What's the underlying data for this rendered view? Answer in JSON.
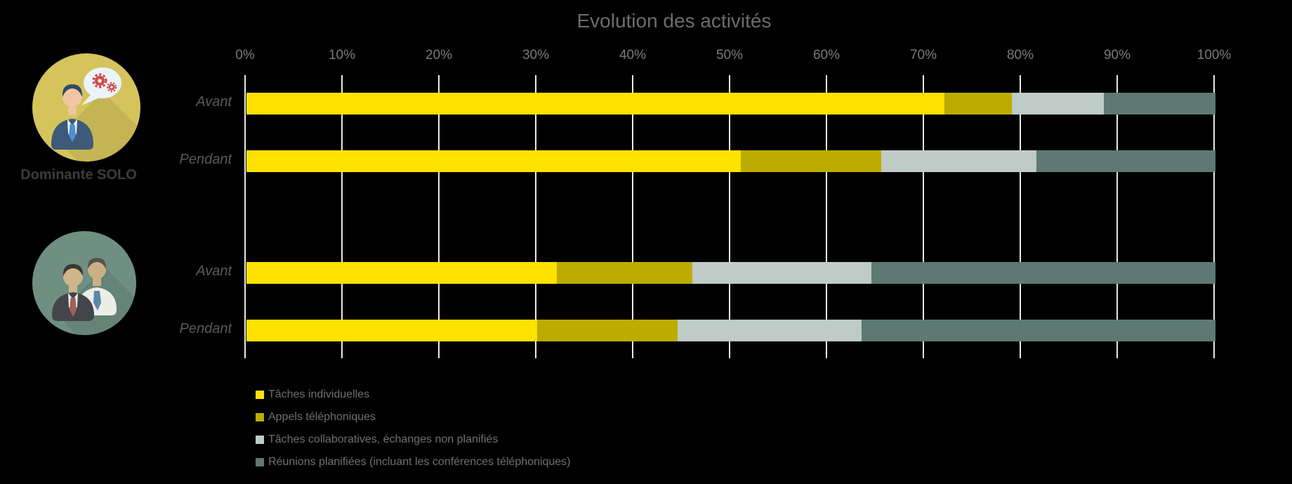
{
  "chart_data": {
    "type": "bar",
    "orientation": "horizontal",
    "stacked": true,
    "title": "Evolution des activités",
    "categories": [
      "Avant",
      "Pendant",
      "Avant",
      "Pendant"
    ],
    "series": [
      {
        "name": "Tâches individuelles",
        "color": "#FFE200",
        "values": [
          72,
          51,
          32,
          30
        ]
      },
      {
        "name": "Appels téléphoniques",
        "color": "#BCAC00",
        "values": [
          7,
          14.5,
          14,
          14.5
        ]
      },
      {
        "name": "Tâches collaboratives, échanges non planifiés",
        "color": "#BECBC6",
        "values": [
          9.5,
          16,
          18.5,
          19
        ]
      },
      {
        "name": "Réunions planifiées (incluant les conférences téléphoniques)",
        "color": "#5E7972",
        "values": [
          11.5,
          18.5,
          35.5,
          36.5
        ]
      }
    ],
    "xlim": [
      0,
      100
    ],
    "x_ticks": [
      "0%",
      "10%",
      "20%",
      "30%",
      "40%",
      "50%",
      "60%",
      "70%",
      "80%",
      "90%",
      "100%"
    ],
    "grid": true,
    "legend_position": "bottom-left"
  },
  "groups": [
    {
      "label": "Dominante SOLO",
      "icon": "solo-businessman-speech-bubble-gears-icon",
      "rows": [
        {
          "label": "Avant"
        },
        {
          "label": "Pendant"
        }
      ]
    },
    {
      "label": "",
      "icon": "duo-businessmen-icon",
      "rows": [
        {
          "label": "Avant"
        },
        {
          "label": "Pendant"
        }
      ]
    }
  ],
  "colors": {
    "background": "#000000",
    "gridline": "#E9E9E9",
    "title_text": "#6C6C6C",
    "tick_text": "#7A7A7A",
    "row_label_text": "#5A5A5A",
    "group_label_text": "#3C3C3C",
    "legend_text": "#707070",
    "solo_circle": "#D5C45C",
    "duo_circle": "#6F8F82"
  }
}
